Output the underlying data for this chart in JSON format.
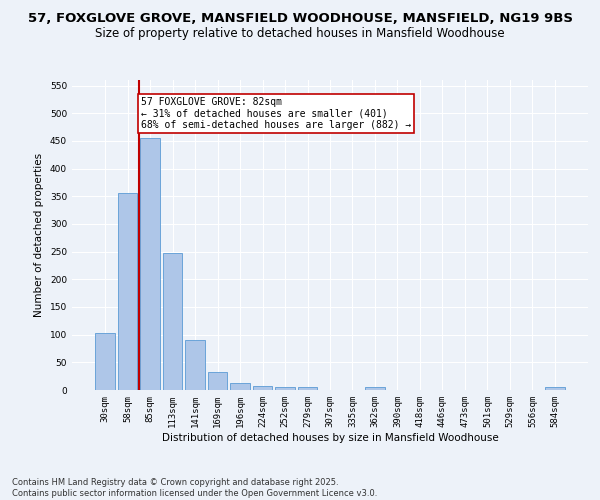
{
  "title1": "57, FOXGLOVE GROVE, MANSFIELD WOODHOUSE, MANSFIELD, NG19 9BS",
  "title2": "Size of property relative to detached houses in Mansfield Woodhouse",
  "xlabel": "Distribution of detached houses by size in Mansfield Woodhouse",
  "ylabel": "Number of detached properties",
  "categories": [
    "30sqm",
    "58sqm",
    "85sqm",
    "113sqm",
    "141sqm",
    "169sqm",
    "196sqm",
    "224sqm",
    "252sqm",
    "279sqm",
    "307sqm",
    "335sqm",
    "362sqm",
    "390sqm",
    "418sqm",
    "446sqm",
    "473sqm",
    "501sqm",
    "529sqm",
    "556sqm",
    "584sqm"
  ],
  "values": [
    103,
    356,
    456,
    247,
    90,
    33,
    13,
    8,
    5,
    5,
    0,
    0,
    5,
    0,
    0,
    0,
    0,
    0,
    0,
    0,
    5
  ],
  "bar_color": "#aec6e8",
  "bar_edge_color": "#5b9bd5",
  "highlight_color": "#c00000",
  "highlight_index": 2,
  "annotation_line1": "57 FOXGLOVE GROVE: 82sqm",
  "annotation_line2": "← 31% of detached houses are smaller (401)",
  "annotation_line3": "68% of semi-detached houses are larger (882) →",
  "annotation_box_color": "#ffffff",
  "annotation_box_edge": "#c00000",
  "ylim": [
    0,
    560
  ],
  "yticks": [
    0,
    50,
    100,
    150,
    200,
    250,
    300,
    350,
    400,
    450,
    500,
    550
  ],
  "footnote": "Contains HM Land Registry data © Crown copyright and database right 2025.\nContains public sector information licensed under the Open Government Licence v3.0.",
  "bg_color": "#edf2f9",
  "grid_color": "#ffffff",
  "title1_fontsize": 9.5,
  "title2_fontsize": 8.5,
  "axis_label_fontsize": 7.5,
  "tick_fontsize": 6.5,
  "annotation_fontsize": 7,
  "footnote_fontsize": 6
}
